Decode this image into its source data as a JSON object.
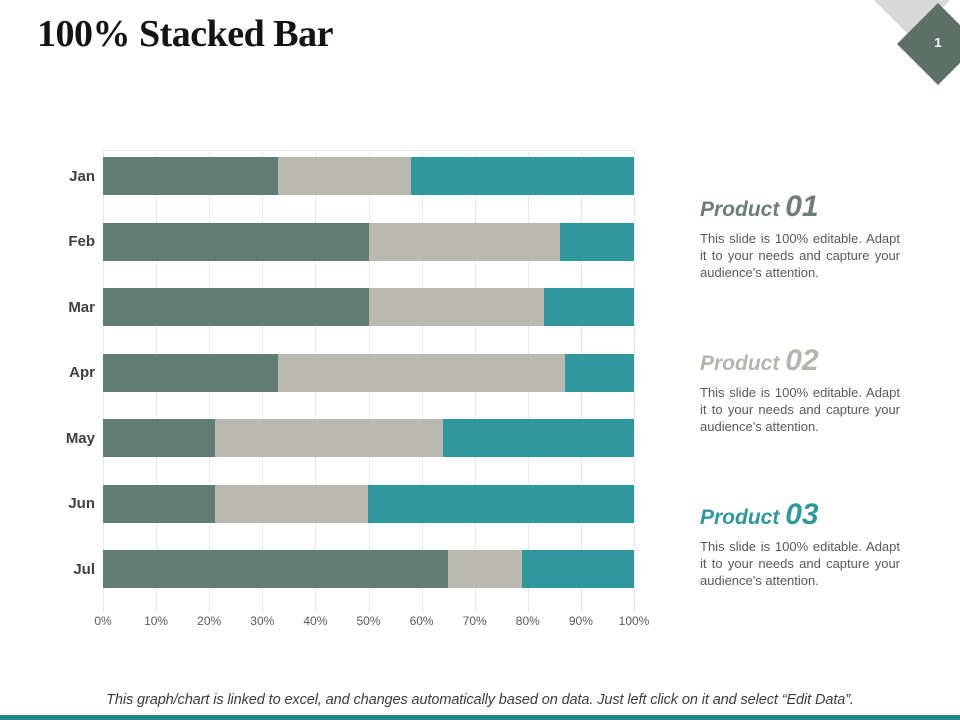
{
  "slide": {
    "title": "100% Stacked Bar",
    "page_number": "1",
    "footer": "This graph/chart is linked to excel, and changes automatically based on data. Just left click on it and select “Edit Data”."
  },
  "chart_data": {
    "type": "bar",
    "subtype": "100-percent-stacked-horizontal",
    "title": "100% Stacked Bar",
    "categories": [
      "Jan",
      "Feb",
      "Mar",
      "Apr",
      "May",
      "Jun",
      "Jul"
    ],
    "series": [
      {
        "name": "Product 01",
        "color": "#617d73",
        "values": [
          33,
          50,
          50,
          33,
          21,
          21,
          65
        ]
      },
      {
        "name": "Product 02",
        "color": "#b9b9b1",
        "values": [
          25,
          36,
          33,
          54,
          43,
          29,
          14
        ]
      },
      {
        "name": "Product 03",
        "color": "#2f989d",
        "values": [
          42,
          14,
          17,
          13,
          36,
          50,
          21
        ]
      }
    ],
    "x_axis": {
      "ticks": [
        "0%",
        "10%",
        "20%",
        "30%",
        "40%",
        "50%",
        "60%",
        "70%",
        "80%",
        "90%",
        "100%"
      ],
      "min": 0,
      "max": 100
    },
    "grid": "vertical-light",
    "legend": "none"
  },
  "products": [
    {
      "label": "Product",
      "number": "01",
      "heading_color": "#6d7e76",
      "description": "This slide is 100% editable. Adapt it to your needs and capture your audience's attention."
    },
    {
      "label": "Product",
      "number": "02",
      "heading_color": "#b5b5ad",
      "description": "This slide is 100% editable. Adapt it to your needs and capture your audience's attention."
    },
    {
      "label": "Product",
      "number": "03",
      "heading_color": "#2f989d",
      "description": "This slide is 100% editable. Adapt it to your needs and capture your audience's attention."
    }
  ],
  "decor": {
    "dark_diamond_color": "#5d7067",
    "light_diamond_color": "#d8d8d8",
    "bottom_bar_color": "#27868b"
  }
}
